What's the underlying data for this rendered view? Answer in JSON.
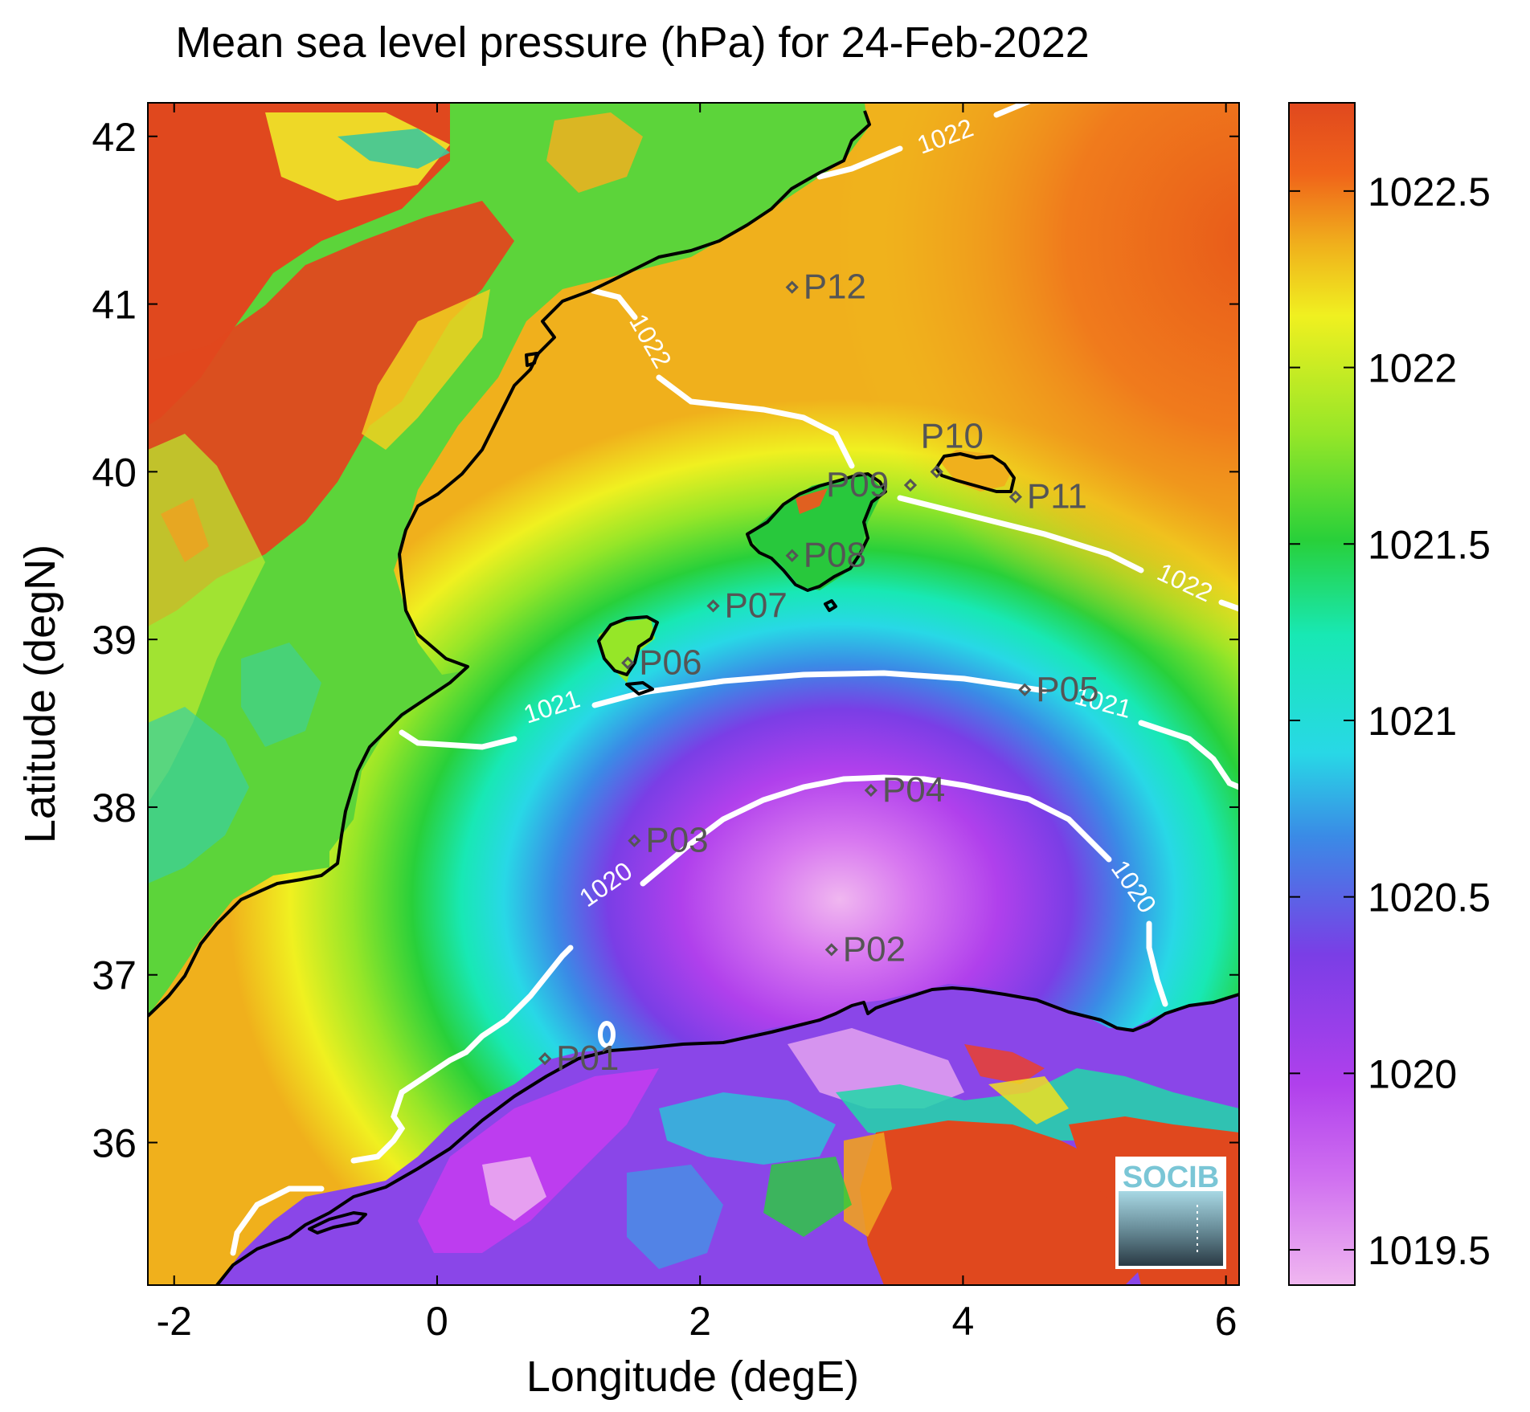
{
  "title": "Mean sea level pressure (hPa) for 24-Feb-2022",
  "x_axis": {
    "label": "Longitude (degE)",
    "range": [
      -2.2,
      6.1
    ],
    "ticks": [
      {
        "value": -2,
        "label": "-2"
      },
      {
        "value": 0,
        "label": "0"
      },
      {
        "value": 2,
        "label": "2"
      },
      {
        "value": 4,
        "label": "4"
      },
      {
        "value": 6,
        "label": "6"
      }
    ]
  },
  "y_axis": {
    "label": "Latitude (degN)",
    "range": [
      35.15,
      42.2
    ],
    "ticks": [
      {
        "value": 36,
        "label": "36"
      },
      {
        "value": 37,
        "label": "37"
      },
      {
        "value": 38,
        "label": "38"
      },
      {
        "value": 39,
        "label": "39"
      },
      {
        "value": 40,
        "label": "40"
      },
      {
        "value": 41,
        "label": "41"
      },
      {
        "value": 42,
        "label": "42"
      }
    ]
  },
  "colorbar": {
    "range": [
      1019.4,
      1022.75
    ],
    "ticks": [
      {
        "value": 1019.5,
        "label": "1019.5"
      },
      {
        "value": 1020,
        "label": "1020"
      },
      {
        "value": 1020.5,
        "label": "1020.5"
      },
      {
        "value": 1021,
        "label": "1021"
      },
      {
        "value": 1021.5,
        "label": "1021.5"
      },
      {
        "value": 1022,
        "label": "1022"
      },
      {
        "value": 1022.5,
        "label": "1022.5"
      }
    ],
    "colors": [
      "#f0b7f0",
      "#c23cf0",
      "#7a3ee6",
      "#3a8be6",
      "#28d8e6",
      "#18e8b4",
      "#28d03a",
      "#96e628",
      "#f0f020",
      "#f0b01c",
      "#f0641a",
      "#e0481e"
    ]
  },
  "contours": [
    {
      "value": 1020,
      "label": "1020"
    },
    {
      "value": 1021,
      "label": "1021"
    },
    {
      "value": 1022,
      "label": "1022"
    }
  ],
  "stations": [
    {
      "id": "P01",
      "lon": 0.82,
      "lat": 36.5
    },
    {
      "id": "P02",
      "lon": 3.0,
      "lat": 37.15
    },
    {
      "id": "P03",
      "lon": 1.5,
      "lat": 37.8
    },
    {
      "id": "P04",
      "lon": 3.3,
      "lat": 38.1
    },
    {
      "id": "P05",
      "lon": 4.47,
      "lat": 38.7
    },
    {
      "id": "P06",
      "lon": 1.45,
      "lat": 38.86
    },
    {
      "id": "P07",
      "lon": 2.1,
      "lat": 39.2
    },
    {
      "id": "P08",
      "lon": 2.7,
      "lat": 39.5
    },
    {
      "id": "P09",
      "lon": 3.6,
      "lat": 39.92
    },
    {
      "id": "P10",
      "lon": 3.8,
      "lat": 40.0
    },
    {
      "id": "P11",
      "lon": 4.4,
      "lat": 39.85
    },
    {
      "id": "P12",
      "lon": 2.7,
      "lat": 41.1
    }
  ],
  "logo": {
    "text": "SOCIB"
  },
  "colors": {
    "land_high": "#e0481e",
    "sea_low": "#c23cf0",
    "contour": "#ffffff",
    "coastline": "#000000",
    "station_text": "#555555"
  }
}
